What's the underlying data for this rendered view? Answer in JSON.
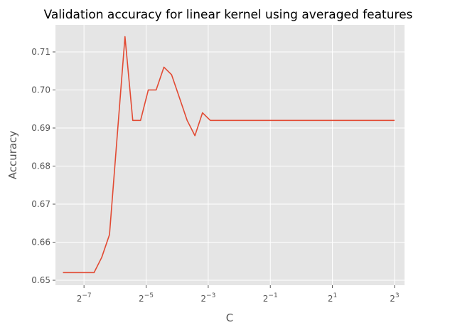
{
  "chart_data": {
    "type": "line",
    "title": "Validation accuracy for linear kernel using averaged features",
    "xlabel": "C",
    "ylabel": "Accuracy",
    "xscale": "log2",
    "xlim": [
      0.00413,
      10.0
    ],
    "ylim": [
      0.6487,
      0.7171
    ],
    "grid": true,
    "xticks": [
      {
        "value": 0.0078125,
        "base": "2",
        "exp": "−7"
      },
      {
        "value": 0.03125,
        "base": "2",
        "exp": "−5"
      },
      {
        "value": 0.125,
        "base": "2",
        "exp": "−3"
      },
      {
        "value": 0.5,
        "base": "2",
        "exp": "−1"
      },
      {
        "value": 2,
        "base": "2",
        "exp": "1"
      },
      {
        "value": 8,
        "base": "2",
        "exp": "3"
      }
    ],
    "yticks": [
      {
        "value": 0.65,
        "label": "0.65"
      },
      {
        "value": 0.66,
        "label": "0.66"
      },
      {
        "value": 0.67,
        "label": "0.67"
      },
      {
        "value": 0.68,
        "label": "0.68"
      },
      {
        "value": 0.69,
        "label": "0.69"
      },
      {
        "value": 0.7,
        "label": "0.70"
      },
      {
        "value": 0.71,
        "label": "0.71"
      }
    ],
    "colors": {
      "line": "#E24A33",
      "plot_background": "#E5E5E5",
      "grid": "#FFFFFF"
    },
    "series": [
      {
        "x": [
          0.00488,
          0.00581,
          0.00691,
          0.00822,
          0.00977,
          0.0116,
          0.0138,
          0.0164,
          0.0195,
          0.0232,
          0.0276,
          0.0328,
          0.0391,
          0.0465,
          0.0552,
          0.0657,
          0.0781,
          0.0929,
          0.11,
          0.131,
          0.156,
          0.186,
          0.221,
          0.263,
          0.313,
          0.372,
          0.442,
          0.526,
          0.625,
          0.743,
          0.884,
          1.051,
          1.25,
          1.487,
          1.768,
          2.102,
          2.5,
          2.973,
          3.536,
          4.204,
          5.0,
          5.946,
          7.071,
          8.0
        ],
        "y": [
          0.652,
          0.652,
          0.652,
          0.652,
          0.652,
          0.656,
          0.662,
          0.688,
          0.714,
          0.692,
          0.692,
          0.7,
          0.7,
          0.706,
          0.704,
          0.698,
          0.692,
          0.688,
          0.694,
          0.692,
          0.692,
          0.692,
          0.692,
          0.692,
          0.692,
          0.692,
          0.692,
          0.692,
          0.692,
          0.692,
          0.692,
          0.692,
          0.692,
          0.692,
          0.692,
          0.692,
          0.692,
          0.692,
          0.692,
          0.692,
          0.692,
          0.692,
          0.692,
          0.692
        ]
      }
    ]
  }
}
